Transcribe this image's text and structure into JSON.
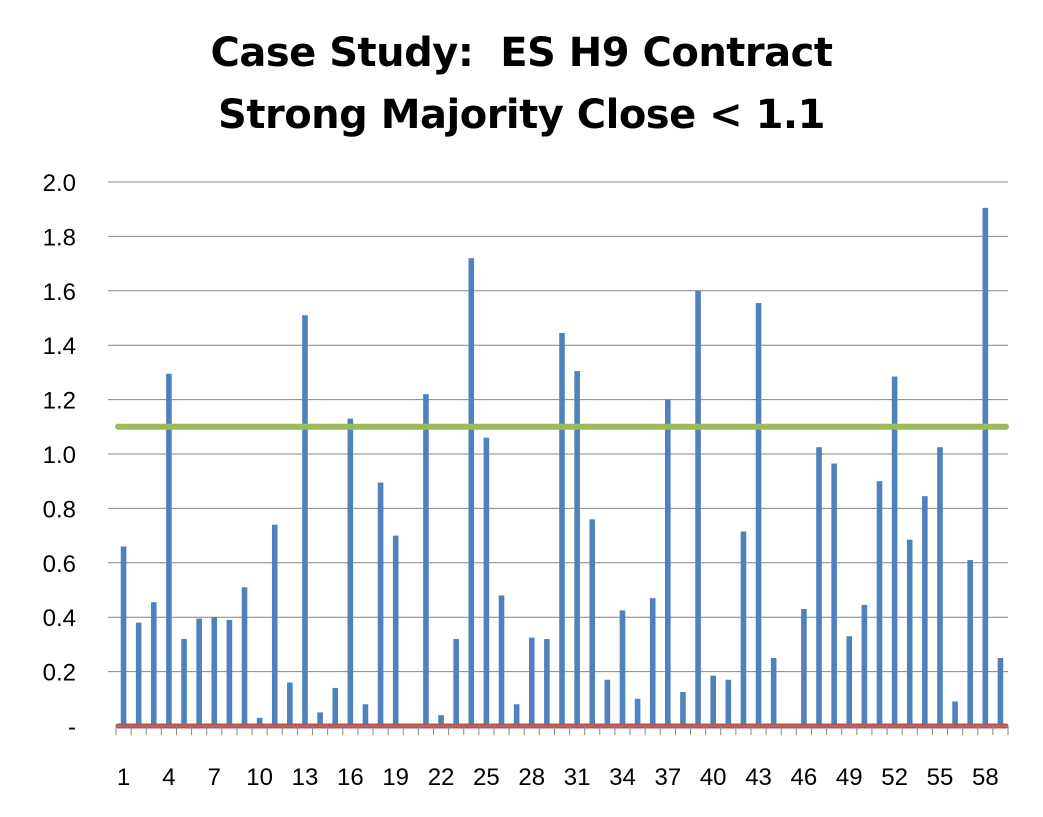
{
  "chart_data": {
    "type": "bar",
    "title_lines": [
      "Case Study:  ES H9 Contract",
      "Strong Majority Close < 1.1"
    ],
    "xlabel": "",
    "ylabel": "",
    "ylim": [
      0,
      2.0
    ],
    "grid": true,
    "legend": "none",
    "y_ticks": [
      0,
      0.2,
      0.4,
      0.6,
      0.8,
      1.0,
      1.2,
      1.4,
      1.6,
      1.8,
      2.0
    ],
    "y_tick_labels": [
      "-",
      "0.2",
      "0.4",
      "0.6",
      "0.8",
      "1.0",
      "1.2",
      "1.4",
      "1.6",
      "1.8",
      "2.0"
    ],
    "categories": [
      1,
      2,
      3,
      4,
      5,
      6,
      7,
      8,
      9,
      10,
      11,
      12,
      13,
      14,
      15,
      16,
      17,
      18,
      19,
      20,
      21,
      22,
      23,
      24,
      25,
      26,
      27,
      28,
      29,
      30,
      31,
      32,
      33,
      34,
      35,
      36,
      37,
      38,
      39,
      40,
      41,
      42,
      43,
      44,
      45,
      46,
      47,
      48,
      49,
      50,
      51,
      52,
      53,
      54,
      55,
      56,
      57,
      58,
      59
    ],
    "x_tick_labels": [
      "1",
      "4",
      "7",
      "10",
      "13",
      "16",
      "19",
      "22",
      "25",
      "28",
      "31",
      "34",
      "37",
      "40",
      "43",
      "46",
      "49",
      "52",
      "55",
      "58"
    ],
    "series": [
      {
        "values": [
          0.66,
          0.38,
          0.455,
          1.295,
          0.32,
          0.395,
          0.4,
          0.39,
          0.51,
          0.03,
          0.74,
          0.16,
          1.51,
          0.05,
          0.14,
          1.13,
          0.08,
          0.895,
          0.7,
          0.0,
          1.22,
          0.04,
          0.32,
          1.72,
          1.06,
          0.48,
          0.08,
          0.325,
          0.32,
          1.445,
          1.305,
          0.76,
          0.17,
          0.425,
          0.1,
          0.47,
          1.2,
          0.125,
          1.6,
          0.185,
          0.17,
          0.715,
          1.555,
          0.25,
          0.0,
          0.43,
          1.025,
          0.965,
          0.33,
          0.445,
          0.9,
          1.285,
          0.685,
          0.845,
          1.025,
          0.09,
          0.61,
          1.905,
          0.25
        ]
      }
    ],
    "reference_lines": [
      {
        "value": 1.1
      },
      {
        "value": 0
      }
    ],
    "colors": {
      "bar": "#4f81bd",
      "threshold_line": "#9bbb59",
      "baseline_line": "#c0504d",
      "grid": "#868686",
      "axis": "#868686",
      "text": "#000000"
    }
  }
}
